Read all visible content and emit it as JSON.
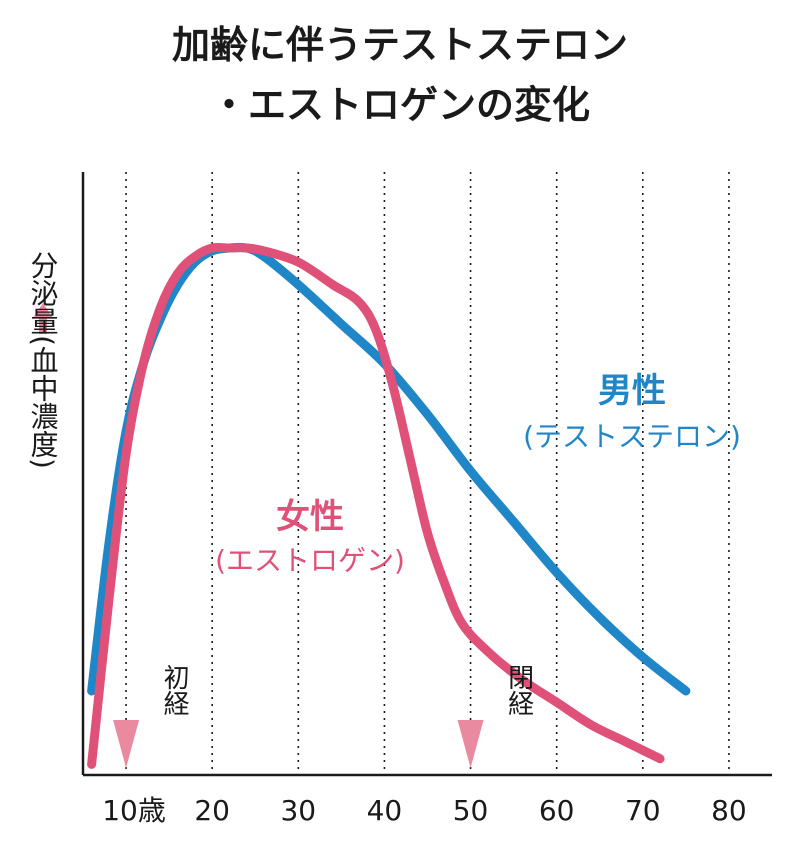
{
  "colors": {
    "male": "#1f86c8",
    "female": "#e0517a",
    "marker": "#e98aa0",
    "axis": "#1a1a1a"
  },
  "chart_data": {
    "type": "line",
    "title": [
      "加齢に伴うテストステロン",
      "・エストロゲンの変化"
    ],
    "ylabel": "分泌量(血中濃度)",
    "ylabel_arrow": "arrow-up-icon",
    "xlabel": "",
    "x_ticks": [
      {
        "value": 10,
        "label": "10歳"
      },
      {
        "value": 20,
        "label": "20"
      },
      {
        "value": 30,
        "label": "30"
      },
      {
        "value": 40,
        "label": "40"
      },
      {
        "value": 50,
        "label": "50"
      },
      {
        "value": 60,
        "label": "60"
      },
      {
        "value": 70,
        "label": "70"
      },
      {
        "value": 80,
        "label": "80"
      }
    ],
    "xlim": [
      5,
      85
    ],
    "ylim": [
      0,
      100
    ],
    "grid": "vertical dotted",
    "series": [
      {
        "key": "male",
        "name": "男性",
        "subname": "(テストステロン)",
        "x": [
          6,
          8,
          10,
          12,
          14,
          16,
          18,
          20,
          22,
          24,
          26,
          30,
          35,
          40,
          45,
          50,
          55,
          60,
          65,
          70,
          75
        ],
        "y": [
          14,
          40,
          60,
          72,
          80,
          86,
          90,
          92,
          92.5,
          92.5,
          91,
          86,
          79,
          72,
          63,
          53,
          44,
          35,
          27,
          20,
          14
        ]
      },
      {
        "key": "female",
        "name": "女性",
        "subname": "(エストロゲン)",
        "x": [
          6,
          8,
          10,
          12,
          14,
          16,
          18,
          20,
          22,
          24,
          26,
          30,
          34,
          37,
          39,
          41,
          43,
          45,
          47,
          49,
          52,
          56,
          60,
          64,
          68,
          72
        ],
        "y": [
          1,
          30,
          56,
          72,
          82,
          88,
          91,
          92.5,
          92.5,
          92.5,
          92,
          90,
          86,
          83,
          78,
          68,
          55,
          42,
          33,
          26,
          21,
          16,
          12,
          8,
          5,
          2
        ]
      }
    ],
    "events": [
      {
        "x": 10,
        "label": "初経",
        "icon": "triangle-down-icon"
      },
      {
        "x": 50,
        "label": "閉経",
        "icon": "triangle-down-icon"
      }
    ]
  }
}
